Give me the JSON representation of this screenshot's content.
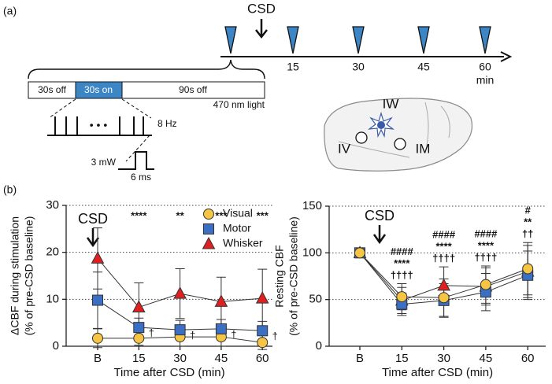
{
  "panel_labels": [
    "(a)",
    "(b)"
  ],
  "diagram": {
    "timeline": {
      "event": "CSD",
      "ticks": [
        "15",
        "30",
        "45",
        "60"
      ],
      "unit": "min"
    },
    "protocol": {
      "segments": [
        "30s off",
        "30s on",
        "90s off"
      ],
      "light": "470 nm light",
      "frequency": "8 Hz",
      "power": "3 mW",
      "pulse_width": "6 ms"
    },
    "brain": {
      "sites": [
        "IW",
        "IV",
        "IM"
      ]
    }
  },
  "chart_data": [
    {
      "type": "line",
      "ylabel": [
        "ΔCBF during stimulation",
        "(% of pre-CSD baseline)"
      ],
      "xlabel": "Time after CSD (min)",
      "annotation": "CSD",
      "categories": [
        "B",
        "15",
        "30",
        "45",
        "60"
      ],
      "ylim": [
        0,
        30
      ],
      "yticks": [
        0,
        10,
        20,
        30
      ],
      "grid": true,
      "legend": true,
      "legend_position": "upper right",
      "series": [
        {
          "name": "Visual",
          "color": "#f7c544",
          "marker": "circle",
          "values": [
            1.7,
            1.7,
            2.0,
            2.0,
            0.8
          ],
          "errors": [
            2.0,
            1.5,
            2.0,
            2.0,
            1.5
          ]
        },
        {
          "name": "Motor",
          "color": "#3a6fc4",
          "marker": "square",
          "values": [
            9.8,
            4.0,
            3.5,
            3.7,
            3.3
          ],
          "errors": [
            6.0,
            2.0,
            2.0,
            2.0,
            2.0
          ]
        },
        {
          "name": "Whisker",
          "color": "#e02020",
          "marker": "triangle",
          "values": [
            18.7,
            8.3,
            11.2,
            9.5,
            10.2
          ],
          "errors": [
            6.5,
            5.2,
            5.3,
            5.2,
            6.2
          ]
        }
      ],
      "stars": [
        null,
        "****",
        "**",
        "***",
        "***"
      ],
      "daggers": [
        null,
        "†",
        "†",
        "†",
        "†"
      ]
    },
    {
      "type": "line",
      "ylabel": [
        "Resting CBF",
        "(% of pre-CSD baseline)"
      ],
      "xlabel": "Time after CSD (min)",
      "annotation": "CSD",
      "categories": [
        "B",
        "15",
        "30",
        "45",
        "60"
      ],
      "ylim": [
        0,
        150
      ],
      "yticks": [
        0,
        50,
        100,
        150
      ],
      "grid": true,
      "legend": false,
      "series": [
        {
          "color": "#e02020",
          "marker": "triangle",
          "values": [
            100,
            49,
            65,
            64,
            80
          ],
          "errors": [
            0,
            14,
            20,
            20,
            28
          ]
        },
        {
          "color": "#3a6fc4",
          "marker": "square",
          "values": [
            100,
            45,
            49,
            58,
            76
          ],
          "errors": [
            0,
            12,
            18,
            20,
            26
          ]
        },
        {
          "color": "#f7c544",
          "marker": "circle",
          "values": [
            100,
            53,
            52,
            66,
            83
          ],
          "errors": [
            0,
            14,
            20,
            20,
            28
          ]
        }
      ],
      "hashes": [
        null,
        "####",
        "####",
        "####",
        "#"
      ],
      "stars": [
        null,
        "****",
        "****",
        "****",
        "**"
      ],
      "daggers": [
        null,
        "††††",
        "††††",
        "††††",
        "††"
      ]
    }
  ]
}
